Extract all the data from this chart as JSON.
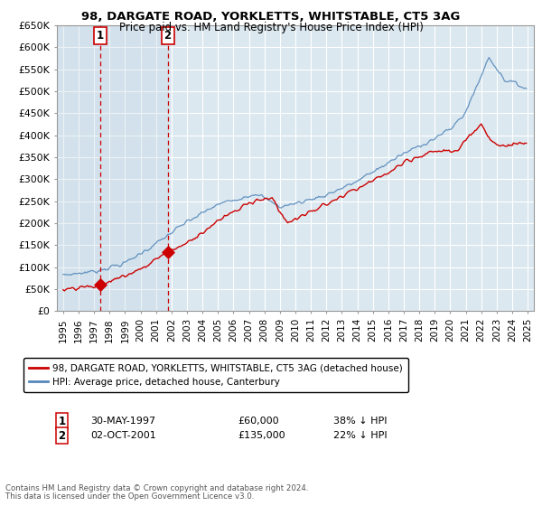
{
  "title": "98, DARGATE ROAD, YORKLETTS, WHITSTABLE, CT5 3AG",
  "subtitle": "Price paid vs. HM Land Registry's House Price Index (HPI)",
  "legend_line1": "98, DARGATE ROAD, YORKLETTS, WHITSTABLE, CT5 3AG (detached house)",
  "legend_line2": "HPI: Average price, detached house, Canterbury",
  "transaction1_date": "30-MAY-1997",
  "transaction1_price": "£60,000",
  "transaction1_hpi": "38% ↓ HPI",
  "transaction1_year": 1997.38,
  "transaction1_value": 60000,
  "transaction2_date": "02-OCT-2001",
  "transaction2_price": "£135,000",
  "transaction2_hpi": "22% ↓ HPI",
  "transaction2_year": 2001.75,
  "transaction2_value": 135000,
  "footer1": "Contains HM Land Registry data © Crown copyright and database right 2024.",
  "footer2": "This data is licensed under the Open Government Licence v3.0.",
  "red_color": "#cc0000",
  "blue_color": "#5588bb",
  "bg_color": "#dce8f0",
  "bg_shade_color": "#c8dcea",
  "grid_color": "#ffffff",
  "ylim_min": 0,
  "ylim_max": 650000,
  "xlim_min": 1994.6,
  "xlim_max": 2025.4
}
